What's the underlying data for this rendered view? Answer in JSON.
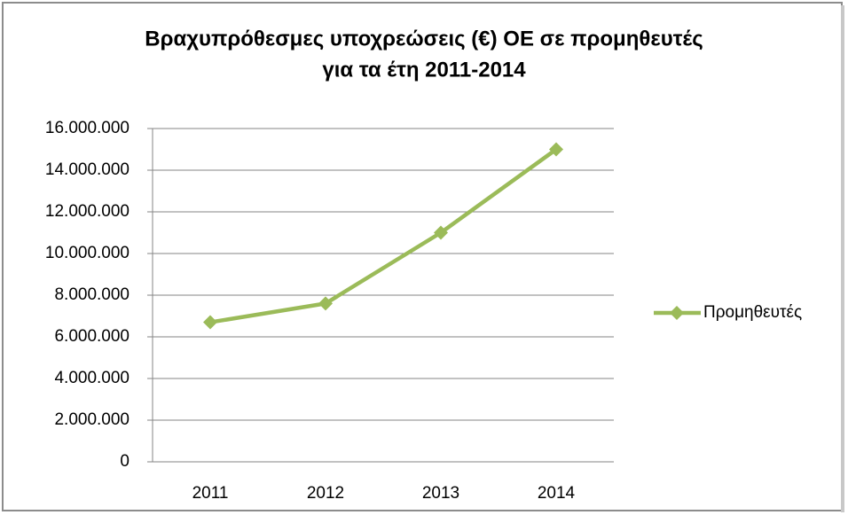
{
  "chart_data": {
    "type": "line",
    "title": [
      "Βραχυπρόθεσμες υποχρεώσεις (€) ΟΕ σε προμηθευτές",
      "για τα έτη 2011-2014"
    ],
    "categories": [
      "2011",
      "2012",
      "2013",
      "2014"
    ],
    "series": [
      {
        "name": "Προμηθευτές",
        "color": "#9bbb59",
        "values": [
          6700000,
          7600000,
          11000000,
          15000000
        ]
      }
    ],
    "ylim": [
      0,
      16000000
    ],
    "yticks": [
      0,
      {
        "value": 2000000,
        "label": "2.000.000"
      },
      {
        "value": 4000000,
        "label": "4.000.000"
      },
      {
        "value": 6000000,
        "label": "6.000.000"
      },
      {
        "value": 8000000,
        "label": "8.000.000"
      },
      {
        "value": 10000000,
        "label": "10.000.000"
      },
      {
        "value": 12000000,
        "label": "12.000.000"
      },
      {
        "value": 14000000,
        "label": "14.000.000"
      },
      {
        "value": 16000000,
        "label": "16.000.000"
      }
    ],
    "grid": true,
    "legend": "right"
  }
}
